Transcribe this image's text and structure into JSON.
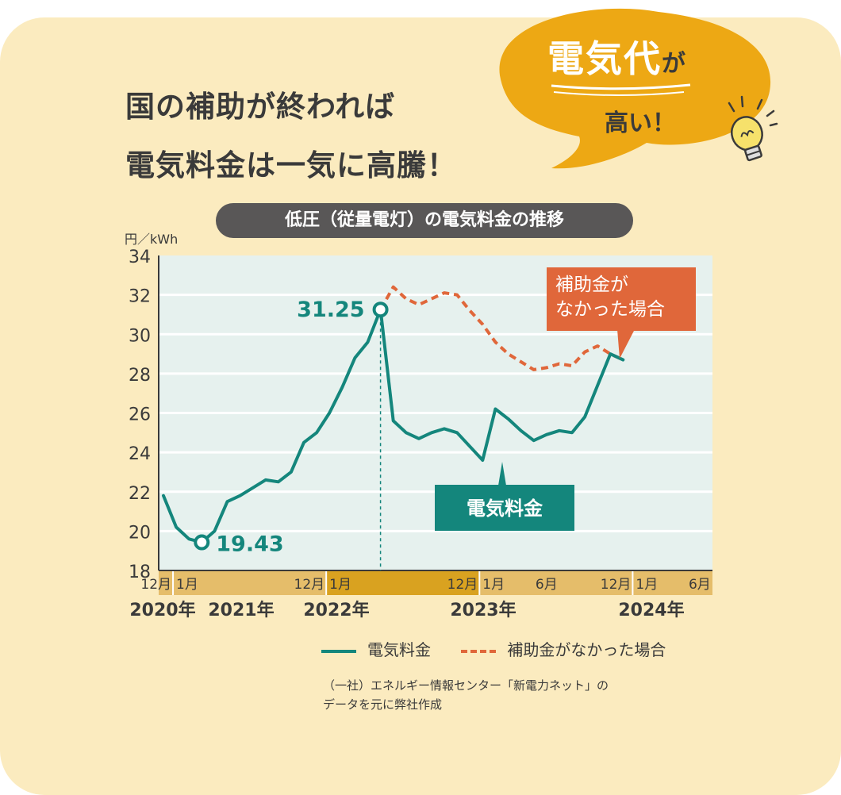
{
  "headline": {
    "line1": "国の補助が終われば",
    "line2": "電気料金は一気に高騰！"
  },
  "bubble": {
    "main": "電気代",
    "particle": "が",
    "sub": "高い！",
    "icon": "light-bulb-icon"
  },
  "colors": {
    "background": "#fbebbf",
    "plot_background": "#e6f1ee",
    "electricity_line": "#14867c",
    "no_subsidy_line": "#e0673a",
    "bubble": "#eda814",
    "title_bar": "#595757"
  },
  "chart_data": {
    "type": "line",
    "title": "低圧（従量電灯）の電気料金の推移",
    "ylabel": "円／kWh",
    "ylim": [
      18,
      34
    ],
    "yticks": [
      18,
      20,
      22,
      24,
      26,
      28,
      30,
      32,
      34
    ],
    "grid": true,
    "x_months": [
      "2020-12",
      "2021-01",
      "2021-02",
      "2021-03",
      "2021-04",
      "2021-05",
      "2021-06",
      "2021-07",
      "2021-08",
      "2021-09",
      "2021-10",
      "2021-11",
      "2021-12",
      "2022-01",
      "2022-02",
      "2022-03",
      "2022-04",
      "2022-05",
      "2022-06",
      "2022-07",
      "2022-08",
      "2022-09",
      "2022-10",
      "2022-11",
      "2022-12",
      "2023-01",
      "2023-02",
      "2023-03",
      "2023-04",
      "2023-05",
      "2023-06",
      "2023-07",
      "2023-08",
      "2023-09",
      "2023-10",
      "2023-11",
      "2023-12",
      "2024-01",
      "2024-02",
      "2024-03",
      "2024-04",
      "2024-05",
      "2024-06",
      "2024-07"
    ],
    "month_labels": [
      {
        "month": "2020-12",
        "label": "12月"
      },
      {
        "month": "2021-01",
        "label": "1月"
      },
      {
        "month": "2021-12",
        "label": "12月"
      },
      {
        "month": "2022-01",
        "label": "1月"
      },
      {
        "month": "2022-12",
        "label": "12月"
      },
      {
        "month": "2023-01",
        "label": "1月"
      },
      {
        "month": "2023-06",
        "label": "6月"
      },
      {
        "month": "2023-12",
        "label": "12月"
      },
      {
        "month": "2024-01",
        "label": "1月"
      },
      {
        "month": "2024-06",
        "label": "6月"
      }
    ],
    "year_labels": [
      "2020年",
      "2021年",
      "2022年",
      "2023年",
      "2024年"
    ],
    "series": [
      {
        "name": "電気料金",
        "start": "2020-12",
        "values": [
          21.8,
          20.2,
          19.6,
          19.43,
          20.0,
          21.5,
          21.8,
          22.2,
          22.6,
          22.5,
          23.0,
          24.5,
          25.0,
          26.0,
          27.3,
          28.8,
          29.6,
          31.25,
          25.6,
          25.0,
          24.7,
          25.0,
          25.2,
          25.0,
          24.3,
          23.6,
          26.2,
          25.7,
          25.1,
          24.6,
          24.9,
          25.1,
          25.0,
          25.8,
          27.4,
          29.0,
          28.7
        ],
        "annotations": [
          {
            "month": "2021-03",
            "value": 19.43,
            "label": "19.43"
          },
          {
            "month": "2022-05",
            "value": 31.25,
            "label": "31.25"
          }
        ],
        "callout": "電気料金"
      },
      {
        "name": "補助金がなかった場合",
        "start": "2022-05",
        "values": [
          31.25,
          32.4,
          31.8,
          31.5,
          31.8,
          32.1,
          32.0,
          31.2,
          30.5,
          29.6,
          29.0,
          28.6,
          28.2,
          28.3,
          28.5,
          28.4,
          29.1,
          29.4,
          29.0,
          28.7
        ],
        "callout_lines": [
          "補助金が",
          "なかった場合"
        ]
      }
    ],
    "divider_month": "2022-05",
    "legend": [
      "電気料金",
      "補助金がなかった場合"
    ],
    "legend_position": "bottom-right"
  },
  "source": {
    "line1": "（一社）エネルギー情報センター「新電力ネット」の",
    "line2": "データを元に弊社作成"
  }
}
